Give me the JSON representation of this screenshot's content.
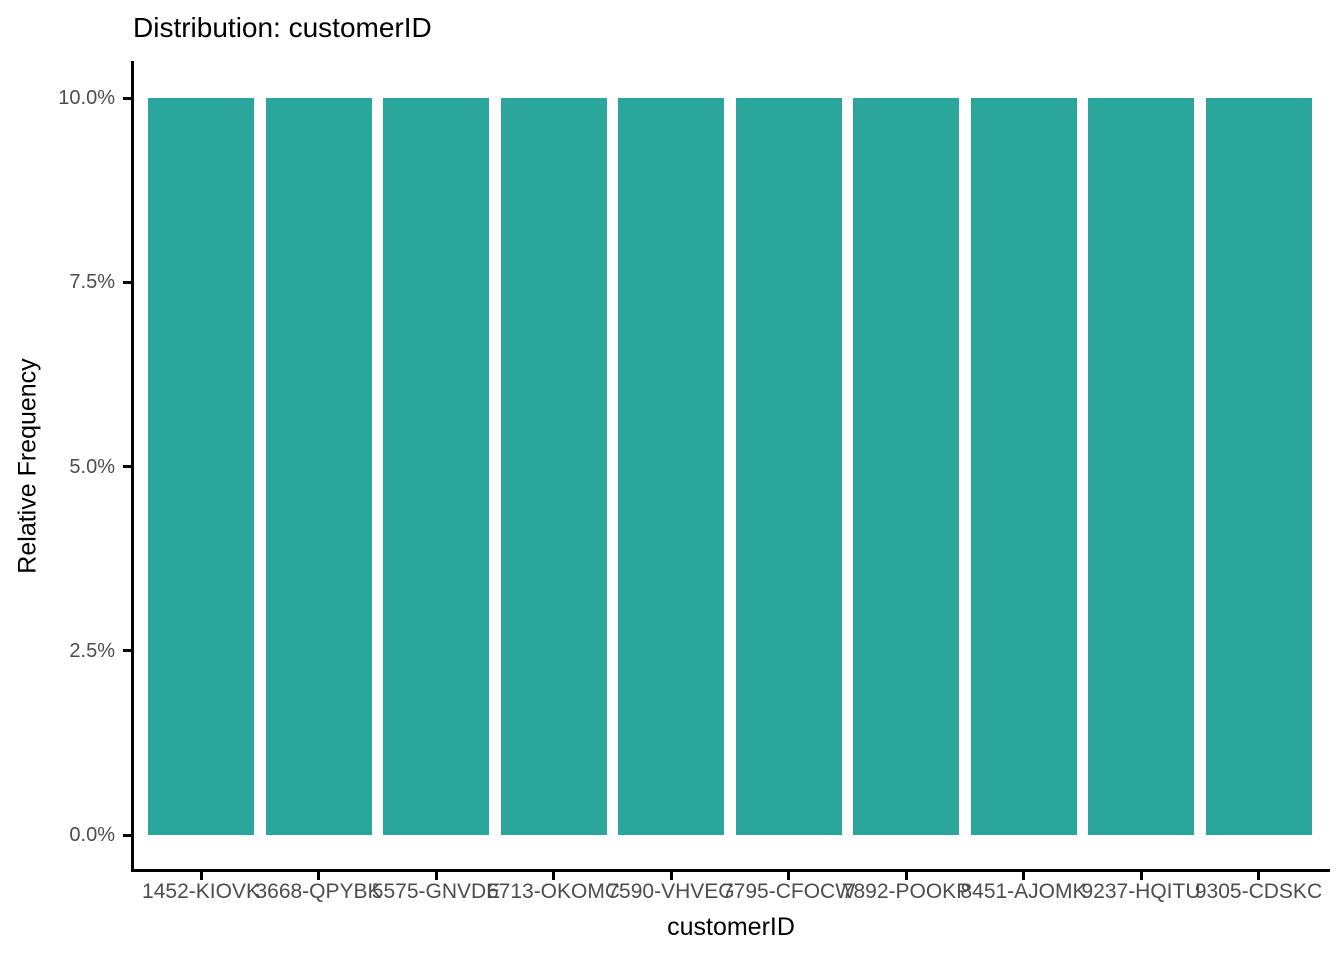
{
  "chart_data": {
    "type": "bar",
    "title": "Distribution: customerID",
    "xlabel": "customerID",
    "ylabel": "Relative Frequency",
    "categories": [
      "1452-KIOVK",
      "3668-QPYBK",
      "5575-GNVDE",
      "6713-OKOMC",
      "7590-VHVEG",
      "7795-CFOCW",
      "7892-POOKP",
      "8451-AJOMK",
      "9237-HQITU",
      "9305-CDSKC"
    ],
    "values": [
      10.0,
      10.0,
      10.0,
      10.0,
      10.0,
      10.0,
      10.0,
      10.0,
      10.0,
      10.0
    ],
    "value_unit": "percent",
    "ylim": [
      0,
      10.5
    ],
    "yticks": [
      {
        "value": 0.0,
        "label": "0.0%"
      },
      {
        "value": 2.5,
        "label": "2.5%"
      },
      {
        "value": 5.0,
        "label": "5.0%"
      },
      {
        "value": 7.5,
        "label": "7.5%"
      },
      {
        "value": 10.0,
        "label": "10.0%"
      }
    ],
    "grid": false,
    "legend": "none",
    "colors": {
      "bar": "#2AA69D",
      "axis_line": "#000000",
      "tick_text": "#4D4D4D",
      "title_text": "#000000"
    }
  }
}
